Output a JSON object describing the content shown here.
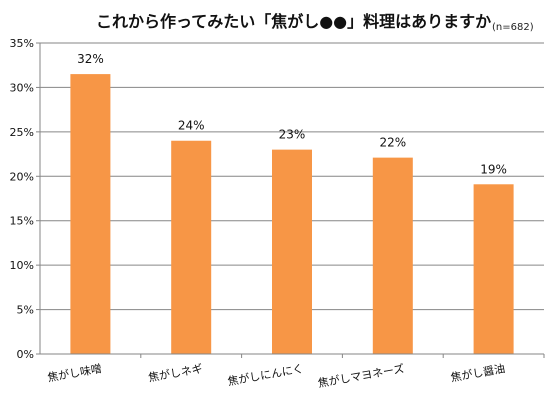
{
  "chart_data": {
    "type": "bar",
    "title": "これから作ってみたい「焦がし●●」料理はありますか",
    "sample_note": "(n=682)",
    "categories": [
      "焦がし味噌",
      "焦がしネギ",
      "焦がしにんにく",
      "焦がしマヨネーズ",
      "焦がし醤油"
    ],
    "values": [
      31.5,
      24.0,
      23.0,
      22.1,
      19.1
    ],
    "data_labels": [
      "32%",
      "24%",
      "23%",
      "22%",
      "19%"
    ],
    "y_ticks": [
      0,
      5,
      10,
      15,
      20,
      25,
      30,
      35
    ],
    "y_tick_labels": [
      "0%",
      "5%",
      "10%",
      "15%",
      "20%",
      "25%",
      "30%",
      "35%"
    ],
    "ylim": [
      0,
      35
    ],
    "grid": true,
    "bar_color": "#F79646",
    "xlabel": "",
    "ylabel": ""
  }
}
